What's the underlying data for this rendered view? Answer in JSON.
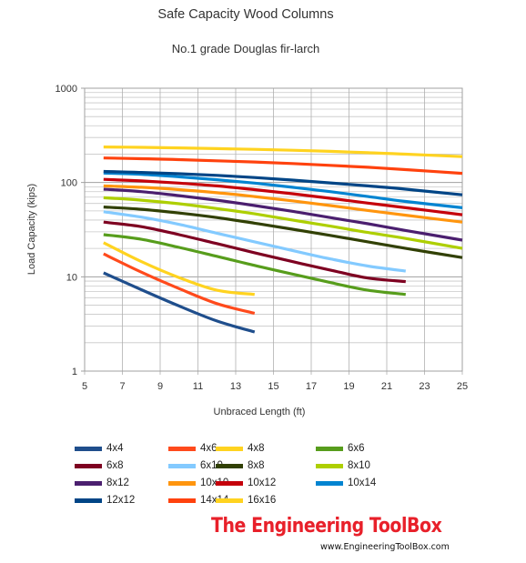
{
  "chart_data": {
    "type": "line",
    "title": "Safe Capacity Wood Columns",
    "subtitle": "No.1 grade Douglas fir-larch",
    "xlabel": "Unbraced Length (ft)",
    "ylabel": "Load Capacity (kips)",
    "xlim": [
      5,
      25
    ],
    "ylim": [
      1,
      1000
    ],
    "yscale": "log",
    "xticks": [
      "5",
      "7",
      "9",
      "11",
      "13",
      "15",
      "17",
      "19",
      "21",
      "23",
      "25"
    ],
    "yticks": [
      "1",
      "10",
      "100",
      "1000"
    ],
    "grid": true,
    "legend_position": "bottom",
    "series": [
      {
        "name": "4x4",
        "color": "#1f4e8c",
        "x": [
          6,
          8,
          10,
          12,
          14
        ],
        "y": [
          11,
          7.3,
          4.9,
          3.4,
          2.6
        ]
      },
      {
        "name": "4x6",
        "color": "#ff4a1c",
        "x": [
          6,
          8,
          10,
          12,
          14
        ],
        "y": [
          17.5,
          11.2,
          7.5,
          5.2,
          4.1
        ]
      },
      {
        "name": "4x8",
        "color": "#ffd320",
        "x": [
          6,
          8,
          10,
          12,
          14
        ],
        "y": [
          23,
          14.5,
          9.8,
          7.2,
          6.5
        ]
      },
      {
        "name": "6x6",
        "color": "#579d1c",
        "x": [
          6,
          8,
          10,
          12,
          14,
          16,
          18,
          20,
          22
        ],
        "y": [
          28,
          25,
          20.5,
          16.5,
          13.2,
          10.7,
          8.7,
          7.2,
          6.5
        ]
      },
      {
        "name": "6x8",
        "color": "#7e0021",
        "x": [
          6,
          8,
          10,
          12,
          14,
          16,
          18,
          20,
          22
        ],
        "y": [
          38,
          34,
          28,
          22.5,
          18,
          14.5,
          11.8,
          9.7,
          8.9
        ]
      },
      {
        "name": "6x10",
        "color": "#83caff",
        "x": [
          6,
          8,
          10,
          12,
          14,
          16,
          18,
          20,
          22
        ],
        "y": [
          49,
          43,
          36,
          29,
          23.5,
          19,
          15.5,
          13,
          11.5
        ]
      },
      {
        "name": "8x8",
        "color": "#314004",
        "x": [
          6,
          8,
          10,
          12,
          14,
          16,
          18,
          20,
          22,
          25
        ],
        "y": [
          55,
          52,
          47.5,
          42.5,
          37,
          32,
          27.5,
          23.5,
          20,
          16
        ]
      },
      {
        "name": "8x10",
        "color": "#aecf00",
        "x": [
          6,
          8,
          10,
          12,
          14,
          16,
          18,
          20,
          22,
          25
        ],
        "y": [
          69,
          65,
          59.5,
          53,
          46.5,
          40,
          34.5,
          29.5,
          25.5,
          20
        ]
      },
      {
        "name": "8x12",
        "color": "#4b1f6f",
        "x": [
          6,
          8,
          10,
          12,
          14,
          16,
          18,
          20,
          22,
          25
        ],
        "y": [
          85,
          80,
          72.5,
          65,
          57,
          49.5,
          42.5,
          36.5,
          31,
          24.5
        ]
      },
      {
        "name": "10x10",
        "color": "#ff950e",
        "x": [
          6,
          8,
          10,
          12,
          14,
          16,
          18,
          20,
          22,
          25
        ],
        "y": [
          92,
          89,
          84,
          78,
          71,
          64,
          57,
          50.5,
          45,
          38
        ]
      },
      {
        "name": "10x12",
        "color": "#c5000b",
        "x": [
          6,
          8,
          10,
          12,
          14,
          16,
          18,
          20,
          22,
          25
        ],
        "y": [
          108,
          104,
          98.5,
          92,
          84,
          76,
          68,
          60.5,
          54,
          45.5
        ]
      },
      {
        "name": "10x14",
        "color": "#0084d1",
        "x": [
          6,
          8,
          10,
          12,
          14,
          16,
          18,
          20,
          22,
          25
        ],
        "y": [
          126,
          122,
          115,
          107,
          98.5,
          89,
          80,
          71,
          63,
          54
        ]
      },
      {
        "name": "12x12",
        "color": "#004586",
        "x": [
          6,
          8,
          10,
          12,
          14,
          16,
          18,
          20,
          22,
          25
        ],
        "y": [
          131,
          128,
          124,
          119,
          113,
          106,
          99,
          92,
          85,
          74
        ]
      },
      {
        "name": "14x14",
        "color": "#ff420e",
        "x": [
          6,
          8,
          10,
          12,
          14,
          16,
          18,
          20,
          22,
          25
        ],
        "y": [
          182,
          179,
          175,
          170,
          165,
          159,
          152,
          145,
          137,
          125
        ]
      },
      {
        "name": "16x16",
        "color": "#ffd320",
        "x": [
          6,
          8,
          10,
          12,
          14,
          16,
          18,
          20,
          22,
          25
        ],
        "y": [
          238,
          236,
          233,
          229,
          225,
          220,
          214,
          207,
          200,
          188
        ]
      }
    ]
  },
  "branding": {
    "name": "The Engineering ToolBox",
    "url": "www.EngineeringToolBox.com"
  }
}
